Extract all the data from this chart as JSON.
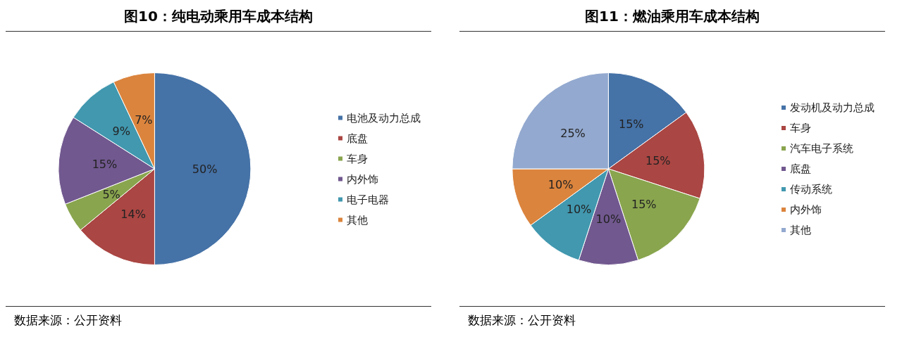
{
  "chart_data": [
    {
      "type": "pie",
      "title": "图10：纯电动乘用车成本结构",
      "categories": [
        "电池及动力总成",
        "底盘",
        "车身",
        "内外饰",
        "电子电器",
        "其他"
      ],
      "values": [
        50,
        14,
        5,
        15,
        9,
        7
      ],
      "value_labels": [
        "50%",
        "14%",
        "5%",
        "15%",
        "9%",
        "7%"
      ],
      "colors": [
        "#4572a7",
        "#aa4643",
        "#89a54e",
        "#71588f",
        "#4198af",
        "#db843d"
      ],
      "legend": "right",
      "annotations": [
        "数据来源：公开资料"
      ]
    },
    {
      "type": "pie",
      "title": "图11：燃油乘用车成本结构",
      "categories": [
        "发动机及动力总成",
        "车身",
        "汽车电子系统",
        "底盘",
        "传动系统",
        "内外饰",
        "其他"
      ],
      "values": [
        15,
        15,
        15,
        10,
        10,
        10,
        25
      ],
      "value_labels": [
        "15%",
        "15%",
        "15%",
        "10%",
        "10%",
        "10%",
        "25%"
      ],
      "colors": [
        "#4572a7",
        "#aa4643",
        "#89a54e",
        "#71588f",
        "#4198af",
        "#db843d",
        "#93a9cf"
      ],
      "legend": "right",
      "annotations": [
        "数据来源：公开资料"
      ]
    }
  ]
}
